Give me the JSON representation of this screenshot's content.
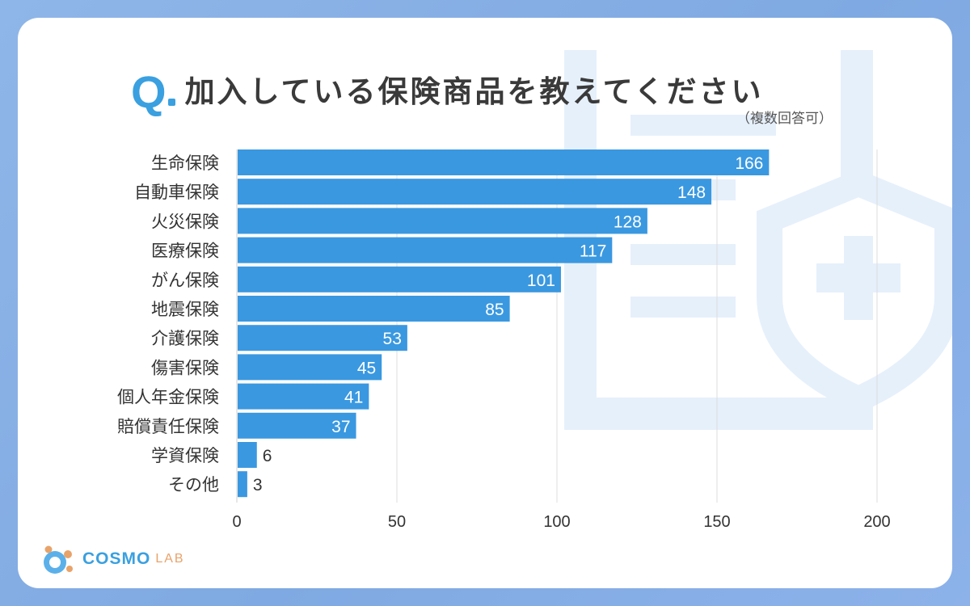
{
  "title": {
    "q_mark": "Q",
    "text": "加入している保険商品を教えてください",
    "subtitle": "（複数回答可）"
  },
  "logo": {
    "part1": "COSMO",
    "part2": "LAB"
  },
  "colors": {
    "bar": "#3a98e0",
    "accent": "#3aa0e0",
    "logo_orange": "#e8a36a",
    "watermark": "#e6f0fb",
    "grid": "#dcdcdc"
  },
  "chart_data": {
    "type": "bar",
    "orientation": "horizontal",
    "categories": [
      "生命保険",
      "自動車保険",
      "火災保険",
      "医療保険",
      "がん保険",
      "地震保険",
      "介護保険",
      "傷害保険",
      "個人年金保険",
      "賠償責任保険",
      "学資保険",
      "その他"
    ],
    "values": [
      166,
      148,
      128,
      117,
      101,
      85,
      53,
      45,
      41,
      37,
      6,
      3
    ],
    "xlim": [
      0,
      200
    ],
    "xticks": [
      "0",
      "50",
      "100",
      "150",
      "200"
    ],
    "grid": true,
    "data_labels": true
  }
}
